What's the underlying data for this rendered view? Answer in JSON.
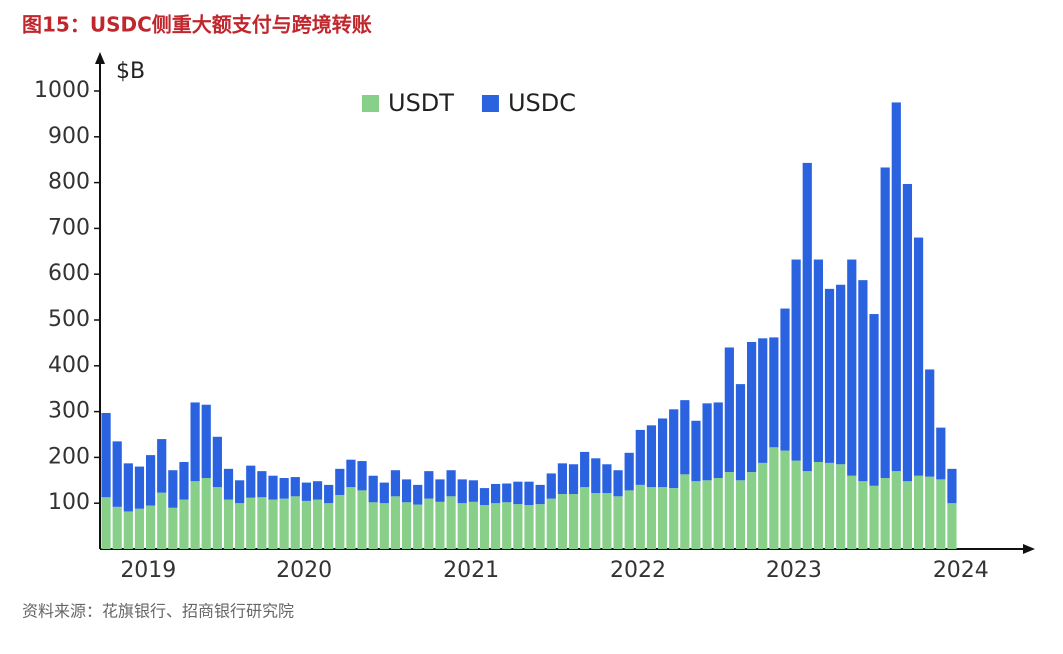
{
  "chart_data": {
    "type": "stacked_bar",
    "title": "图15：USDC侧重大额支付与跨境转账",
    "y_unit_label": "$B",
    "source": "资料来源：花旗银行、招商银行研究院",
    "categories": [
      null,
      null,
      "2019",
      null,
      null,
      null,
      null,
      null,
      null,
      null,
      null,
      null,
      null,
      null,
      null,
      null,
      "2020",
      null,
      null,
      null,
      null,
      null,
      null,
      null,
      null,
      null,
      null,
      null,
      null,
      null,
      null,
      "2021",
      null,
      null,
      null,
      null,
      null,
      null,
      null,
      null,
      null,
      null,
      null,
      null,
      null,
      null,
      "2022",
      null,
      null,
      null,
      null,
      null,
      null,
      null,
      null,
      null,
      null,
      null,
      null,
      null,
      "2023",
      null,
      null,
      null,
      null,
      null,
      null,
      null,
      null,
      null,
      null,
      null,
      null,
      null,
      null,
      "2024",
      null
    ],
    "series": [
      {
        "name": "USDT",
        "color": "#88d08a",
        "values": [
          113,
          92,
          82,
          88,
          95,
          123,
          90,
          108,
          148,
          155,
          135,
          108,
          100,
          112,
          113,
          108,
          110,
          115,
          105,
          108,
          100,
          118,
          135,
          128,
          102,
          100,
          115,
          102,
          97,
          110,
          103,
          115,
          100,
          103,
          96,
          100,
          102,
          98,
          96,
          98,
          110,
          120,
          120,
          135,
          122,
          122,
          115,
          128,
          140,
          135,
          135,
          133,
          163,
          148,
          150,
          155,
          168,
          150,
          168,
          188,
          222,
          215,
          193,
          170,
          190,
          188,
          185,
          160,
          148,
          138,
          155,
          170,
          148,
          160,
          158,
          152,
          100
        ]
      },
      {
        "name": "USDC",
        "color": "#2a62e0",
        "values": [
          184,
          143,
          105,
          92,
          110,
          117,
          82,
          82,
          172,
          160,
          110,
          67,
          50,
          70,
          57,
          52,
          45,
          42,
          40,
          40,
          40,
          57,
          60,
          64,
          58,
          45,
          57,
          50,
          43,
          60,
          49,
          57,
          52,
          47,
          37,
          42,
          41,
          49,
          51,
          42,
          55,
          67,
          65,
          77,
          76,
          63,
          57,
          82,
          120,
          135,
          150,
          172,
          162,
          132,
          168,
          165,
          272,
          210,
          284,
          272,
          240,
          310,
          439,
          673,
          442,
          380,
          392,
          472,
          439,
          375,
          678,
          805,
          649,
          520,
          234,
          113,
          75
        ]
      }
    ],
    "ylim": [
      0,
      1000
    ],
    "yticks": [
      100,
      200,
      300,
      400,
      500,
      600,
      700,
      800,
      900,
      1000
    ],
    "legend": "top"
  }
}
